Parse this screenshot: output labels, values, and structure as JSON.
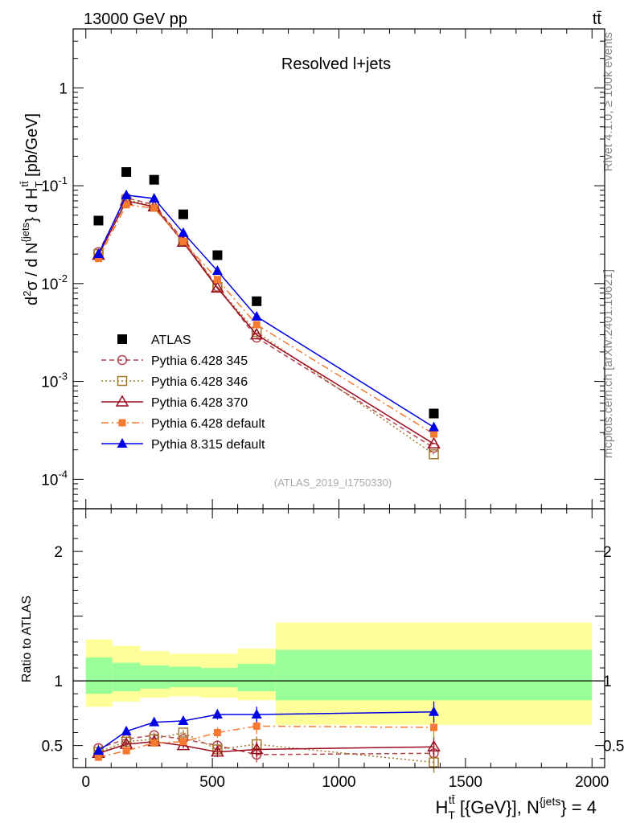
{
  "header": {
    "energy_label": "13000 GeV pp",
    "process_label": "tt̄"
  },
  "side_text": {
    "rivet": "Rivet 4.1.0, ≥ 100k events",
    "mcplots": "mcplots.cern.ch [arXiv:2401.10621]"
  },
  "colors": {
    "atlas": "#000000",
    "p345": "#b2444c",
    "p346": "#a17a2e",
    "p370": "#9b0b1e",
    "p6def": "#f5792f",
    "p8def": "#0000e6",
    "band_inner": "#99ff99",
    "band_outer": "#ffff99"
  },
  "chart_data": [
    {
      "type": "line",
      "panel": "main",
      "title": "Resolved l+jets",
      "ylabel": "d²σ / d N^{jets} } d H_T^{tt̄} [pb/GeV]",
      "yscale": "log",
      "ylim": [
        5e-05,
        4
      ],
      "xlim": [
        -50,
        2050
      ],
      "ytick_labels": [
        "10^-4",
        "10^-3",
        "10^-2",
        "10^-1",
        "1"
      ],
      "ytick_values": [
        0.0001,
        0.001,
        0.01,
        0.1,
        1
      ],
      "watermark": "(ATLAS_2019_I1750330)",
      "x": [
        50,
        160,
        270,
        385,
        520,
        675,
        1375
      ],
      "series": [
        {
          "name": "ATLAS",
          "key": "atlas",
          "marker": "square-filled",
          "line": "none",
          "values": [
            0.044,
            0.138,
            0.115,
            0.051,
            0.0195,
            0.0066,
            0.00047
          ]
        },
        {
          "name": "Pythia 6.428 345",
          "key": "p345",
          "marker": "circle-open",
          "line": "dashed",
          "values": [
            0.021,
            0.075,
            0.064,
            0.028,
            0.0093,
            0.0028,
            0.00021
          ]
        },
        {
          "name": "Pythia 6.428 346",
          "key": "p346",
          "marker": "square-open",
          "line": "dotted",
          "values": [
            0.02,
            0.072,
            0.062,
            0.0275,
            0.0092,
            0.0032,
            0.00018
          ]
        },
        {
          "name": "Pythia 6.428 370",
          "key": "p370",
          "marker": "triangle-open",
          "line": "solid",
          "values": [
            0.0195,
            0.07,
            0.061,
            0.0265,
            0.009,
            0.003,
            0.00023
          ]
        },
        {
          "name": "Pythia 6.428 default",
          "key": "p6def",
          "marker": "square-small-filled",
          "line": "dashdot",
          "values": [
            0.018,
            0.064,
            0.059,
            0.027,
            0.011,
            0.0038,
            0.00029
          ]
        },
        {
          "name": "Pythia 8.315 default",
          "key": "p8def",
          "marker": "triangle-filled",
          "line": "solid",
          "values": [
            0.02,
            0.08,
            0.074,
            0.033,
            0.0135,
            0.0046,
            0.00034
          ]
        }
      ]
    },
    {
      "type": "line",
      "panel": "ratio",
      "ylabel": "Ratio to ATLAS",
      "ylim": [
        0.33,
        2.33
      ],
      "xlim": [
        -50,
        2050
      ],
      "xlabel": "H_T^{tt̄} [{GeV}], N^{jets} } = 4",
      "xtick_values": [
        0,
        500,
        1000,
        1500,
        2000
      ],
      "xtick_labels": [
        "0",
        "500",
        "1000",
        "1500",
        "2000"
      ],
      "ytick_values": [
        0.5,
        1,
        2
      ],
      "ytick_labels": [
        "0.5",
        "1",
        "2"
      ],
      "bands": [
        {
          "x_lo": 0,
          "x_hi": 105,
          "inner": [
            0.9,
            1.18
          ],
          "outer": [
            0.8,
            1.32
          ]
        },
        {
          "x_lo": 105,
          "x_hi": 215,
          "inner": [
            0.92,
            1.14
          ],
          "outer": [
            0.84,
            1.27
          ]
        },
        {
          "x_lo": 215,
          "x_hi": 330,
          "inner": [
            0.94,
            1.12
          ],
          "outer": [
            0.87,
            1.23
          ]
        },
        {
          "x_lo": 330,
          "x_hi": 455,
          "inner": [
            0.95,
            1.11
          ],
          "outer": [
            0.88,
            1.21
          ]
        },
        {
          "x_lo": 455,
          "x_hi": 600,
          "inner": [
            0.95,
            1.1
          ],
          "outer": [
            0.87,
            1.21
          ]
        },
        {
          "x_lo": 600,
          "x_hi": 750,
          "inner": [
            0.92,
            1.13
          ],
          "outer": [
            0.85,
            1.25
          ]
        },
        {
          "x_lo": 750,
          "x_hi": 2000,
          "inner": [
            0.85,
            1.24
          ],
          "outer": [
            0.66,
            1.45
          ]
        }
      ],
      "x": [
        50,
        160,
        270,
        385,
        520,
        675,
        1375
      ],
      "series": [
        {
          "name": "Pythia 6.428 345",
          "key": "p345",
          "marker": "circle-open",
          "line": "dashed",
          "values": [
            0.48,
            0.55,
            0.58,
            0.55,
            0.5,
            0.43,
            0.44
          ],
          "errors": [
            0.03,
            0.02,
            0.02,
            0.02,
            0.04,
            0.06,
            0.08
          ]
        },
        {
          "name": "Pythia 6.428 346",
          "key": "p346",
          "marker": "square-open",
          "line": "dotted",
          "values": [
            0.45,
            0.53,
            0.55,
            0.6,
            0.47,
            0.51,
            0.37
          ],
          "errors": [
            0.03,
            0.02,
            0.02,
            0.02,
            0.04,
            0.06,
            0.08
          ]
        },
        {
          "name": "Pythia 6.428 370",
          "key": "p370",
          "marker": "triangle-open",
          "line": "solid",
          "values": [
            0.44,
            0.51,
            0.53,
            0.5,
            0.45,
            0.47,
            0.49
          ],
          "errors": [
            0.03,
            0.02,
            0.02,
            0.02,
            0.04,
            0.06,
            0.08
          ]
        },
        {
          "name": "Pythia 6.428 default",
          "key": "p6def",
          "marker": "square-small-filled",
          "line": "dashdot",
          "values": [
            0.41,
            0.46,
            0.52,
            0.53,
            0.6,
            0.65,
            0.64
          ],
          "errors": [
            0.03,
            0.02,
            0.02,
            0.02,
            0.04,
            0.06,
            0.08
          ]
        },
        {
          "name": "Pythia 8.315 default",
          "key": "p8def",
          "marker": "triangle-filled",
          "line": "solid",
          "values": [
            0.46,
            0.61,
            0.68,
            0.69,
            0.74,
            0.74,
            0.76
          ],
          "errors": [
            0.03,
            0.02,
            0.02,
            0.02,
            0.04,
            0.06,
            0.08
          ]
        }
      ]
    }
  ]
}
